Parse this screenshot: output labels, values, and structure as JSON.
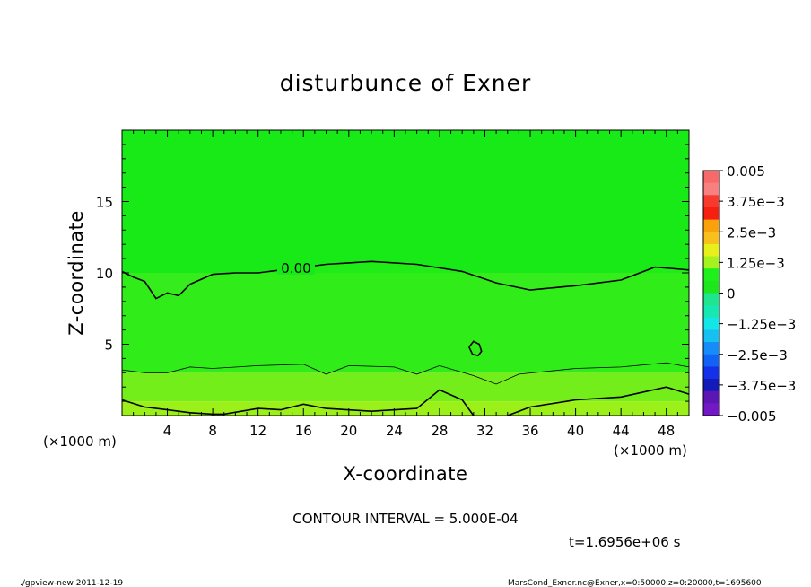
{
  "chart_data": {
    "type": "heatmap",
    "title": "disturbunce of Exner",
    "xlabel": "X-coordinate",
    "ylabel": "Z-coordinate",
    "x_unit": "(×1000 m)",
    "y_unit": "(×1000 m)",
    "xlim": [
      0,
      50
    ],
    "ylim": [
      0,
      20
    ],
    "x_ticks": [
      "4",
      "8",
      "12",
      "16",
      "20",
      "24",
      "28",
      "32",
      "36",
      "40",
      "44",
      "48"
    ],
    "y_ticks": [
      "5",
      "10",
      "15"
    ],
    "contour_interval_text": "CONTOUR INTERVAL = 5.000E-04",
    "contour_label": "0.00",
    "zero_contour": [
      [
        0,
        10.1
      ],
      [
        1,
        9.7
      ],
      [
        2,
        9.4
      ],
      [
        3,
        8.2
      ],
      [
        4,
        8.6
      ],
      [
        5,
        8.4
      ],
      [
        6,
        9.2
      ],
      [
        8,
        9.9
      ],
      [
        10,
        10.0
      ],
      [
        12,
        10.0
      ],
      [
        14,
        10.2
      ],
      [
        18,
        10.6
      ],
      [
        22,
        10.8
      ],
      [
        26,
        10.6
      ],
      [
        30,
        10.1
      ],
      [
        33,
        9.3
      ],
      [
        36,
        8.8
      ],
      [
        40,
        9.1
      ],
      [
        44,
        9.5
      ],
      [
        47,
        10.4
      ],
      [
        50,
        10.2
      ]
    ],
    "mid_contour": [
      [
        0,
        3.2
      ],
      [
        2,
        3.0
      ],
      [
        4,
        3.0
      ],
      [
        6,
        3.4
      ],
      [
        8,
        3.3
      ],
      [
        12,
        3.5
      ],
      [
        16,
        3.6
      ],
      [
        18,
        2.9
      ],
      [
        20,
        3.5
      ],
      [
        24,
        3.4
      ],
      [
        26,
        2.9
      ],
      [
        28,
        3.5
      ],
      [
        31,
        2.8
      ],
      [
        33,
        2.2
      ],
      [
        35,
        2.9
      ],
      [
        40,
        3.3
      ],
      [
        44,
        3.4
      ],
      [
        48,
        3.7
      ],
      [
        50,
        3.4
      ]
    ],
    "lower_contour": [
      [
        0,
        1.1
      ],
      [
        2,
        0.6
      ],
      [
        4,
        0.4
      ],
      [
        6,
        0.2
      ],
      [
        8,
        0.1
      ],
      [
        9,
        0.1
      ],
      [
        12,
        0.5
      ],
      [
        14,
        0.4
      ],
      [
        16,
        0.8
      ],
      [
        18,
        0.5
      ],
      [
        22,
        0.3
      ],
      [
        26,
        0.5
      ],
      [
        28,
        1.8
      ],
      [
        30,
        1.1
      ],
      [
        31,
        0
      ]
    ],
    "lower_contour_right": [
      [
        34,
        0
      ],
      [
        36,
        0.6
      ],
      [
        40,
        1.1
      ],
      [
        44,
        1.3
      ],
      [
        48,
        2.0
      ],
      [
        50,
        1.5
      ]
    ],
    "closed_contour": [
      [
        30.6,
        4.8
      ],
      [
        31.0,
        5.2
      ],
      [
        31.5,
        5.0
      ],
      [
        31.7,
        4.5
      ],
      [
        31.4,
        4.2
      ],
      [
        30.9,
        4.3
      ]
    ],
    "fill_bands": [
      {
        "from": 10,
        "to": 20,
        "color": "#17ea17"
      },
      {
        "from": 3,
        "to": 10,
        "color": "#35ec1c"
      },
      {
        "from": 1,
        "to": 3,
        "color": "#74ee1a"
      },
      {
        "from": 0,
        "to": 1,
        "color": "#9bf01a"
      }
    ],
    "colorbar": {
      "labels": [
        "0.005",
        "3.75e−3",
        "2.5e−3",
        "1.25e−3",
        "0",
        "−1.25e−3",
        "−2.5e−3",
        "−3.75e−3",
        "−0.005"
      ],
      "colors": [
        "#f86a6a",
        "#f98080",
        "#f83a2e",
        "#f52012",
        "#f9a20c",
        "#f8c01a",
        "#e6f11b",
        "#a6f21e",
        "#1ef01c",
        "#1ee61c",
        "#1ee68e",
        "#17e8b2",
        "#12e6e8",
        "#16c0f0",
        "#158cf8",
        "#1262f6",
        "#1430e8",
        "#121ab8",
        "#5c16b4",
        "#7418c6"
      ]
    }
  },
  "footer": {
    "time": "t=1.6956e+06 s",
    "left": "./gpview-new   2011-12-19",
    "right": "MarsCond_Exner.nc@Exner,x=0:50000,z=0:20000,t=1695600"
  }
}
